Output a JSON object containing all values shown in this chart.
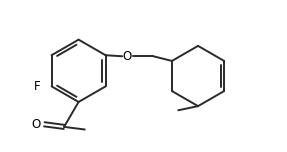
{
  "background": "#ffffff",
  "line_color": "#2a2a2a",
  "line_width": 1.4,
  "text_color": "#000000",
  "font_size": 8.5,
  "figsize": [
    2.87,
    1.52
  ],
  "dpi": 100,
  "xlim": [
    0.0,
    5.2
  ],
  "ylim": [
    -0.1,
    2.8
  ]
}
